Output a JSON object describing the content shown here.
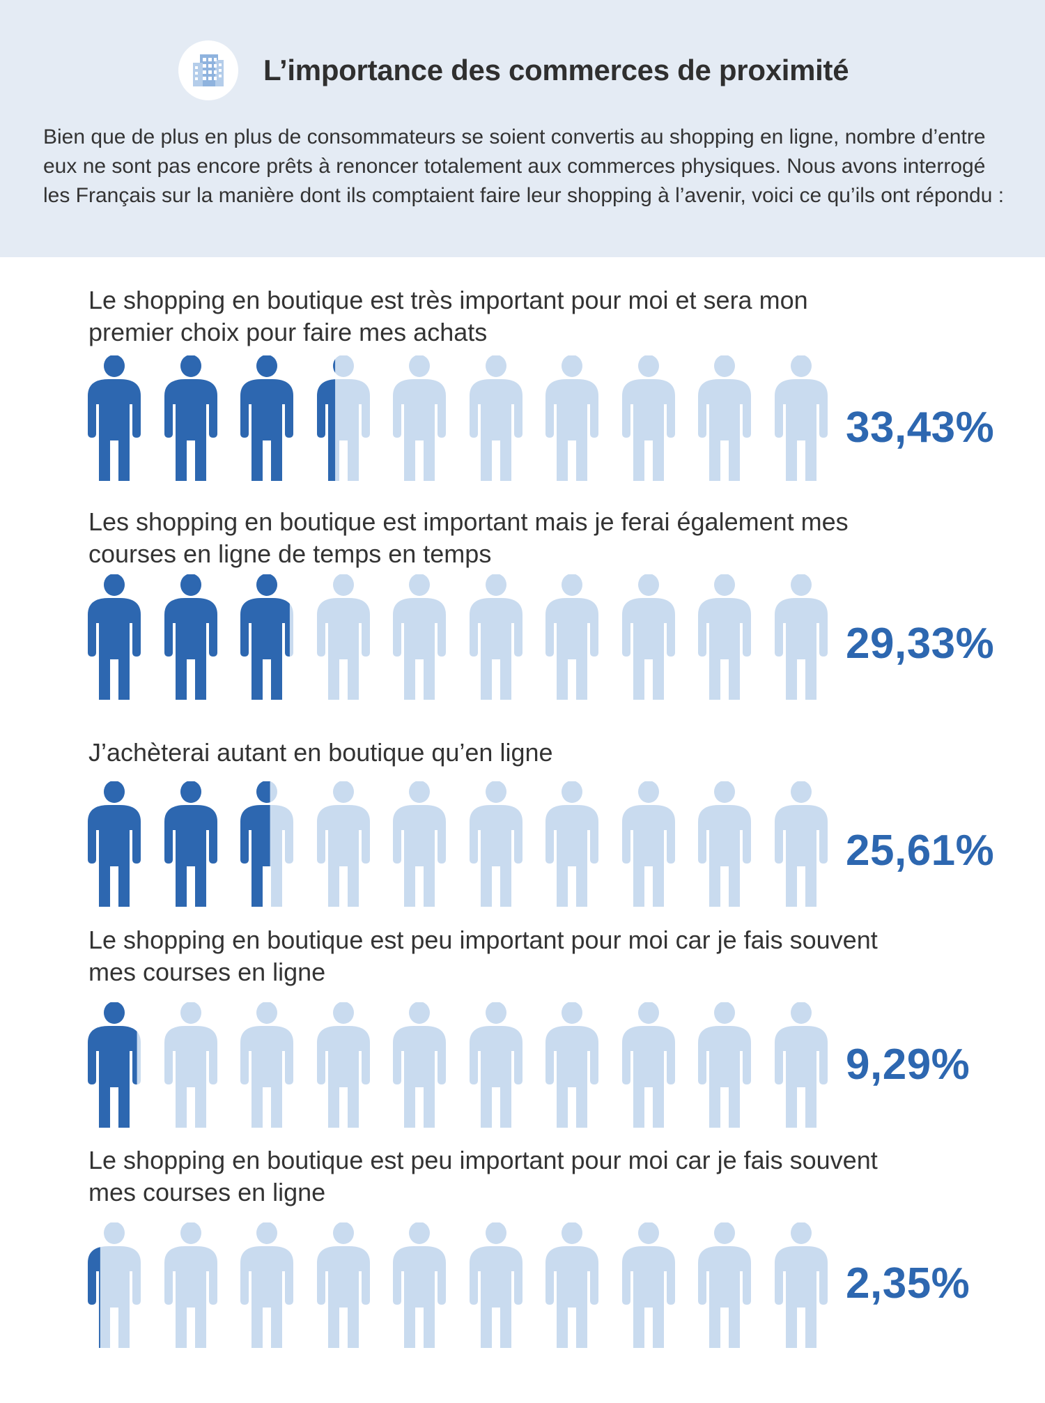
{
  "header": {
    "title": "L’importance des commerces de proximité",
    "icon": "building-icon",
    "intro": "Bien que de plus en plus de consommateurs se soient convertis au shopping en ligne, nombre d’entre eux ne sont pas encore prêts à renoncer totalement aux commerces physiques. Nous avons interrogé les Français sur la manière dont ils comptaient faire leur shopping à l’avenir, voici ce qu’ils ont répondu :"
  },
  "colors": {
    "header_bg": "#e4ebf4",
    "filled": "#2d67b0",
    "empty": "#c9dbef",
    "text": "#333333"
  },
  "chart_data": {
    "type": "pictograph",
    "icon": "person-icon",
    "icons_per_row": 10,
    "rows": [
      {
        "label": "Le shopping en boutique est très important pour moi et sera mon premier choix pour faire mes achats",
        "value": 33.43,
        "value_label": "33,43%"
      },
      {
        "label": "Les shopping en boutique est important mais je ferai également mes courses en ligne de temps en temps",
        "value": 29.33,
        "value_label": "29,33%"
      },
      {
        "label": "J’achèterai autant en boutique qu’en ligne",
        "value": 25.61,
        "value_label": "25,61%"
      },
      {
        "label": "Le shopping en boutique est peu important pour moi car je fais souvent mes courses en ligne",
        "value": 9.29,
        "value_label": "9,29%"
      },
      {
        "label": "Le shopping en boutique est peu important pour moi car je fais souvent mes courses en ligne",
        "value": 2.35,
        "value_label": "2,35%"
      }
    ]
  }
}
